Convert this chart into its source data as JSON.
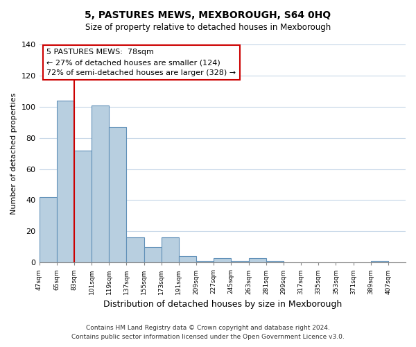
{
  "title": "5, PASTURES MEWS, MEXBOROUGH, S64 0HQ",
  "subtitle": "Size of property relative to detached houses in Mexborough",
  "xlabel": "Distribution of detached houses by size in Mexborough",
  "ylabel": "Number of detached properties",
  "bar_color": "#b8cfe0",
  "bar_edge_color": "#6090b8",
  "bins": [
    47,
    65,
    83,
    101,
    119,
    137,
    155,
    173,
    191,
    209,
    227,
    245,
    263,
    281,
    299,
    317,
    335,
    353,
    371,
    389,
    407
  ],
  "counts": [
    42,
    104,
    72,
    101,
    87,
    16,
    10,
    16,
    4,
    1,
    3,
    1,
    3,
    1,
    0,
    0,
    0,
    0,
    0,
    1
  ],
  "tick_labels": [
    "47sqm",
    "65sqm",
    "83sqm",
    "101sqm",
    "119sqm",
    "137sqm",
    "155sqm",
    "173sqm",
    "191sqm",
    "209sqm",
    "227sqm",
    "245sqm",
    "263sqm",
    "281sqm",
    "299sqm",
    "317sqm",
    "335sqm",
    "353sqm",
    "371sqm",
    "389sqm",
    "407sqm"
  ],
  "ylim": [
    0,
    140
  ],
  "property_size": 83,
  "pct_smaller": 27,
  "n_smaller": 124,
  "pct_larger_semi": 72,
  "n_larger_semi": 328,
  "vline_color": "#cc0000",
  "annotation_box_edge": "#cc0000",
  "footer_line1": "Contains HM Land Registry data © Crown copyright and database right 2024.",
  "footer_line2": "Contains public sector information licensed under the Open Government Licence v3.0.",
  "background_color": "#ffffff",
  "plot_background": "#ffffff",
  "grid_color": "#c8d8e8"
}
